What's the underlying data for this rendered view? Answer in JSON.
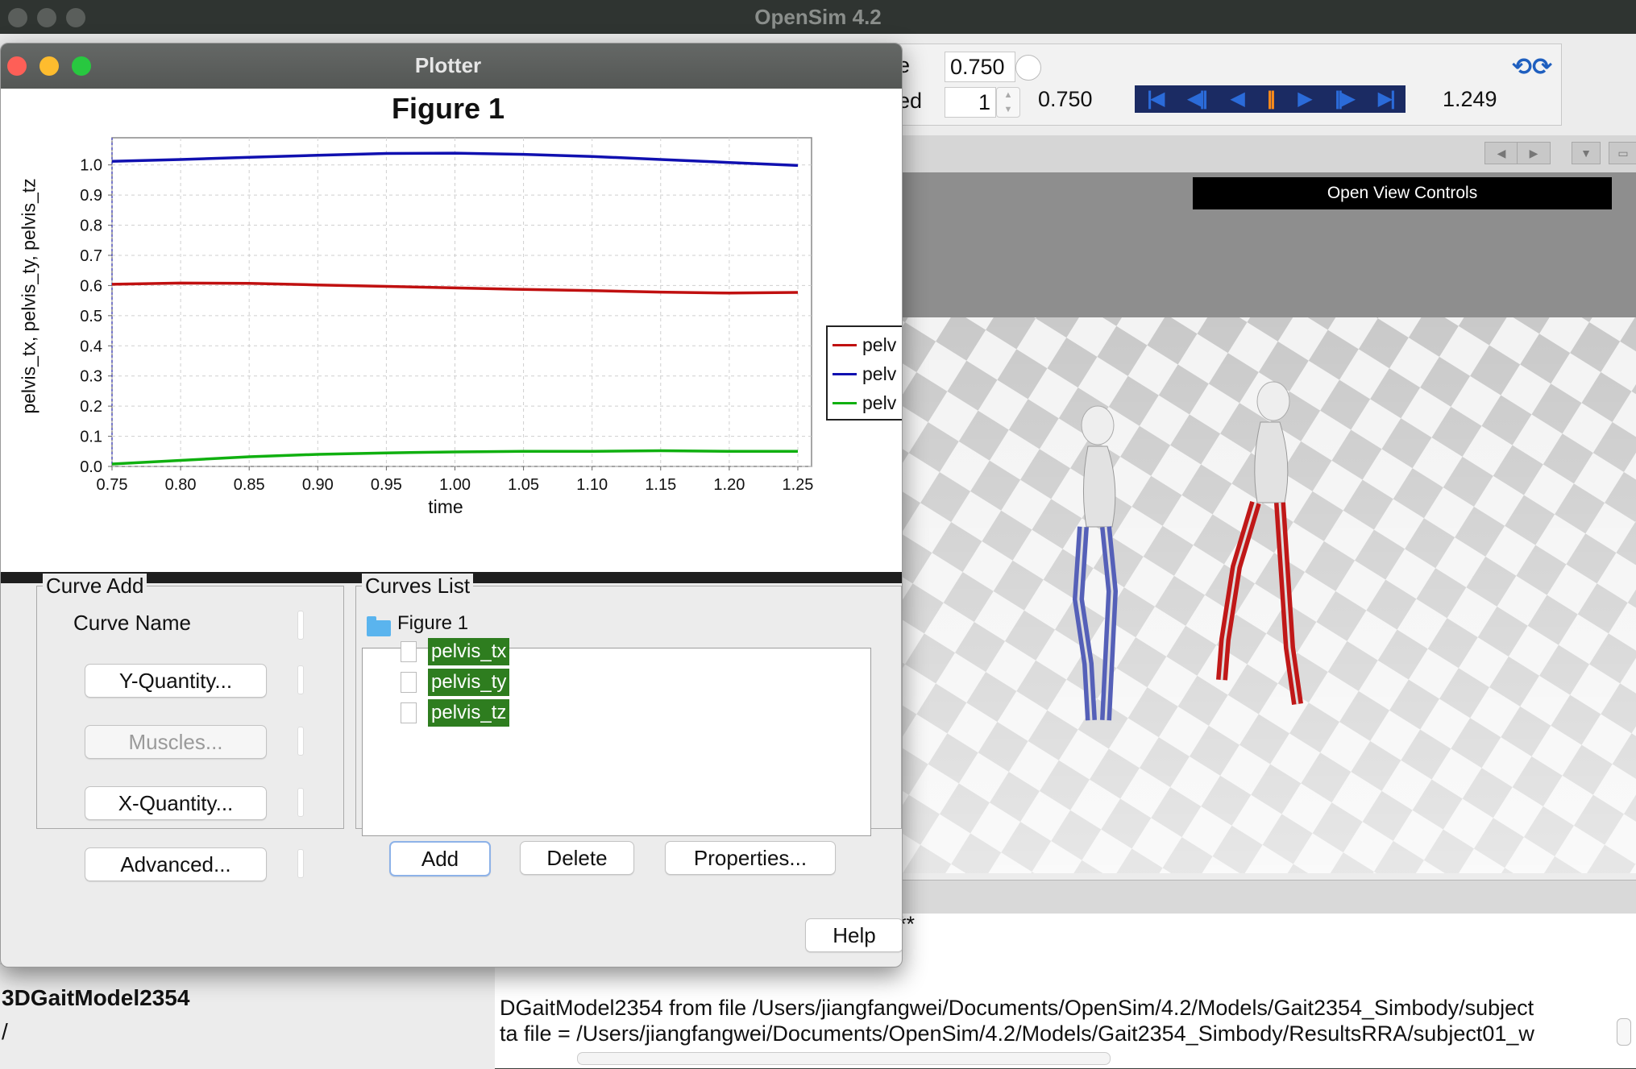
{
  "main_window": {
    "title": "OpenSim 4.2"
  },
  "toolbar": {
    "time_label": "e",
    "time_value": "0.750",
    "speed_label": "ed",
    "speed_value": "1",
    "current_time": "0.750",
    "end_time": "1.249",
    "buttons": [
      "first-frame",
      "step-back",
      "play-back",
      "pause",
      "play",
      "step-forward",
      "last-frame"
    ]
  },
  "viewer": {
    "open_view_controls": "Open View Controls"
  },
  "plotter": {
    "title": "Plotter",
    "figure_title": "Figure 1",
    "ylabel": "pelvis_tx, pelvis_ty, pelvis_tz",
    "xlabel": "time",
    "legend": [
      "pelv",
      "pelv",
      "pelv"
    ],
    "curve_add": {
      "title": "Curve Add",
      "curve_name_label": "Curve Name",
      "y_quantity": "Y-Quantity...",
      "muscles": "Muscles...",
      "x_quantity": "X-Quantity...",
      "advanced": "Advanced..."
    },
    "curves_list": {
      "title": "Curves List",
      "figure": "Figure 1",
      "curves": [
        "pelvis_tx",
        "pelvis_ty",
        "pelvis_tz"
      ],
      "add": "Add",
      "delete": "Delete",
      "properties": "Properties..."
    },
    "help": "Help"
  },
  "chart_data": {
    "type": "line",
    "title": "Figure 1",
    "xlabel": "time",
    "ylabel": "pelvis_tx, pelvis_ty, pelvis_tz",
    "xlim": [
      0.75,
      1.26
    ],
    "ylim": [
      0.0,
      1.09
    ],
    "xticks": [
      "0.75",
      "0.80",
      "0.85",
      "0.90",
      "0.95",
      "1.00",
      "1.05",
      "1.10",
      "1.15",
      "1.20",
      "1.25"
    ],
    "yticks": [
      "0.0",
      "0.1",
      "0.2",
      "0.3",
      "0.4",
      "0.5",
      "0.6",
      "0.7",
      "0.8",
      "0.9",
      "1.0"
    ],
    "grid": true,
    "legend_position": "right",
    "series": [
      {
        "name": "pelv",
        "color": "#c01010",
        "x": [
          0.75,
          0.8,
          0.85,
          0.9,
          0.95,
          1.0,
          1.05,
          1.1,
          1.15,
          1.2,
          1.25
        ],
        "y": [
          0.604,
          0.608,
          0.607,
          0.602,
          0.597,
          0.592,
          0.587,
          0.583,
          0.578,
          0.575,
          0.577
        ]
      },
      {
        "name": "pelv",
        "color": "#1010b0",
        "x": [
          0.75,
          0.8,
          0.85,
          0.9,
          0.95,
          1.0,
          1.05,
          1.1,
          1.15,
          1.2,
          1.25
        ],
        "y": [
          1.012,
          1.018,
          1.025,
          1.032,
          1.038,
          1.039,
          1.035,
          1.028,
          1.018,
          1.008,
          0.998
        ]
      },
      {
        "name": "pelv",
        "color": "#10b010",
        "x": [
          0.75,
          0.8,
          0.85,
          0.9,
          0.95,
          1.0,
          1.05,
          1.1,
          1.15,
          1.2,
          1.25
        ],
        "y": [
          0.008,
          0.02,
          0.032,
          0.04,
          0.045,
          0.048,
          0.05,
          0.05,
          0.052,
          0.05,
          0.05
        ]
      }
    ],
    "cursor_x": 0.75
  },
  "console": {
    "asterisks": "**",
    "line1": "DGaitModel2354 from file /Users/jiangfangwei/Documents/OpenSim/4.2/Models/Gait2354_Simbody/subject",
    "line2": "ta file = /Users/jiangfangwei/Documents/OpenSim/4.2/Models/Gait2354_Simbody/ResultsRRA/subject01_w"
  },
  "navigator": {
    "model": "3DGaitModel2354",
    "path": "/"
  },
  "colors": {
    "selection": "#2e7d1f",
    "playbar": "#1b2b63",
    "pause": "#ff8c1a"
  }
}
